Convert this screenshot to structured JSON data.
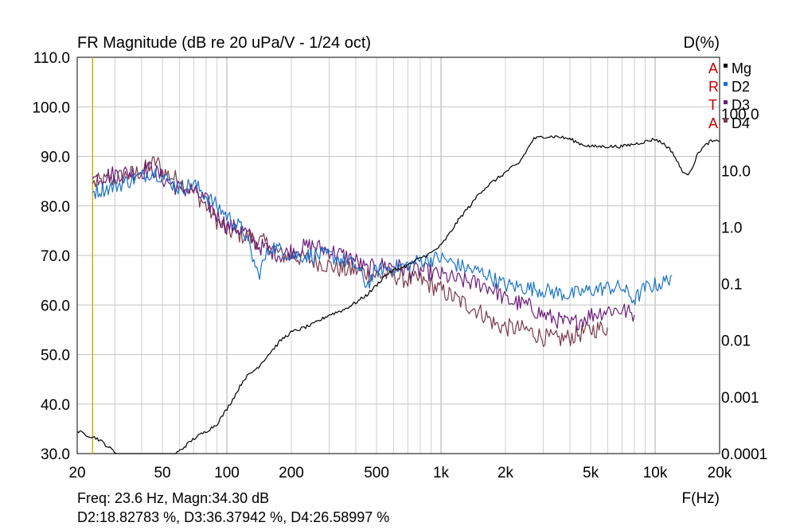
{
  "chart_data": {
    "type": "line",
    "title": "FR Magnitude (dB re 20 uPa/V - 1/24 oct)",
    "right_axis_label": "D(%)",
    "xlabel": "F(Hz)",
    "x_scale": "log",
    "xlim": [
      20,
      20000
    ],
    "ylim": [
      30,
      110
    ],
    "y_right_scale": "log",
    "y_right_lim": [
      0.0001,
      1000
    ],
    "grid": true,
    "legend_position": "top-right",
    "x_tick_labels": [
      {
        "value": 20,
        "label": "20"
      },
      {
        "value": 50,
        "label": "50"
      },
      {
        "value": 100,
        "label": "100"
      },
      {
        "value": 200,
        "label": "200"
      },
      {
        "value": 500,
        "label": "500"
      },
      {
        "value": 1000,
        "label": "1k"
      },
      {
        "value": 2000,
        "label": "2k"
      },
      {
        "value": 5000,
        "label": "5k"
      },
      {
        "value": 10000,
        "label": "10k"
      },
      {
        "value": 20000,
        "label": "20k"
      }
    ],
    "y_left_tick_labels": [
      {
        "value": 110,
        "label": "110.0"
      },
      {
        "value": 100,
        "label": "100.0"
      },
      {
        "value": 90,
        "label": "90.0"
      },
      {
        "value": 80,
        "label": "80.0"
      },
      {
        "value": 70,
        "label": "70.0"
      },
      {
        "value": 60,
        "label": "60.0"
      },
      {
        "value": 50,
        "label": "50.0"
      },
      {
        "value": 40,
        "label": "40.0"
      },
      {
        "value": 30,
        "label": "30.0"
      }
    ],
    "y_right_tick_labels": [
      {
        "value": 100,
        "label": "100.0"
      },
      {
        "value": 10,
        "label": "10.0"
      },
      {
        "value": 1,
        "label": "1.0"
      },
      {
        "value": 0.1,
        "label": "0.1"
      },
      {
        "value": 0.01,
        "label": "0.01"
      },
      {
        "value": 0.001,
        "label": "0.001"
      },
      {
        "value": 0.0001,
        "label": "0.0001"
      }
    ],
    "cursor_freq_hz": 23.6,
    "series": [
      {
        "name": "Mg",
        "axis": "left",
        "color": "#000000",
        "points": [
          [
            20,
            34.5
          ],
          [
            25,
            33
          ],
          [
            30,
            30.3
          ],
          [
            40,
            27
          ],
          [
            50,
            28
          ],
          [
            60,
            30.5
          ],
          [
            70,
            33
          ],
          [
            80,
            34.5
          ],
          [
            90,
            36
          ],
          [
            100,
            39
          ],
          [
            110,
            42
          ],
          [
            120,
            45
          ],
          [
            140,
            47.5
          ],
          [
            160,
            50.5
          ],
          [
            180,
            53
          ],
          [
            200,
            54.5
          ],
          [
            250,
            56
          ],
          [
            300,
            58
          ],
          [
            350,
            59
          ],
          [
            400,
            60.5
          ],
          [
            450,
            62
          ],
          [
            500,
            64
          ],
          [
            550,
            66
          ],
          [
            600,
            67
          ],
          [
            700,
            68
          ],
          [
            800,
            69.5
          ],
          [
            900,
            70.5
          ],
          [
            1000,
            72
          ],
          [
            1100,
            74.5
          ],
          [
            1200,
            77
          ],
          [
            1300,
            79
          ],
          [
            1400,
            80.5
          ],
          [
            1500,
            82.5
          ],
          [
            1700,
            84.5
          ],
          [
            1900,
            86
          ],
          [
            2100,
            87.5
          ],
          [
            2300,
            88.5
          ],
          [
            2500,
            91
          ],
          [
            2700,
            93.5
          ],
          [
            3000,
            94
          ],
          [
            3500,
            94
          ],
          [
            4000,
            93.5
          ],
          [
            4500,
            92.5
          ],
          [
            5000,
            92
          ],
          [
            6000,
            92
          ],
          [
            7000,
            92
          ],
          [
            8000,
            92.5
          ],
          [
            9000,
            93
          ],
          [
            10000,
            93.5
          ],
          [
            11000,
            92.5
          ],
          [
            12000,
            91
          ],
          [
            13000,
            88
          ],
          [
            14000,
            86
          ],
          [
            15000,
            88
          ],
          [
            16000,
            91
          ],
          [
            18000,
            93
          ],
          [
            20000,
            93
          ]
        ]
      },
      {
        "name": "D2",
        "axis": "left",
        "color": "#1a73c7",
        "points": [
          [
            23.6,
            82.8
          ],
          [
            30,
            84
          ],
          [
            40,
            86
          ],
          [
            45,
            87
          ],
          [
            50,
            86
          ],
          [
            60,
            83.5
          ],
          [
            70,
            84.5
          ],
          [
            80,
            82
          ],
          [
            90,
            80
          ],
          [
            100,
            78
          ],
          [
            120,
            75
          ],
          [
            140,
            66
          ],
          [
            160,
            72
          ],
          [
            180,
            71
          ],
          [
            200,
            70
          ],
          [
            250,
            70
          ],
          [
            300,
            70
          ],
          [
            350,
            69
          ],
          [
            400,
            68
          ],
          [
            450,
            64
          ],
          [
            500,
            67
          ],
          [
            600,
            67.5
          ],
          [
            700,
            68
          ],
          [
            800,
            69
          ],
          [
            1000,
            69.5
          ],
          [
            1200,
            68
          ],
          [
            1400,
            67
          ],
          [
            1600,
            66.5
          ],
          [
            1800,
            65
          ],
          [
            2000,
            64
          ],
          [
            2500,
            63.5
          ],
          [
            3000,
            63
          ],
          [
            3500,
            62.5
          ],
          [
            4000,
            62
          ],
          [
            5000,
            63
          ],
          [
            6000,
            63.5
          ],
          [
            7000,
            63.5
          ],
          [
            8000,
            61
          ],
          [
            9000,
            63.5
          ],
          [
            10000,
            64
          ],
          [
            11000,
            64.5
          ],
          [
            12000,
            66
          ]
        ]
      },
      {
        "name": "D3",
        "axis": "left",
        "color": "#6b1d7a",
        "points": [
          [
            23.6,
            85.5
          ],
          [
            30,
            86.5
          ],
          [
            40,
            87
          ],
          [
            45,
            87.5
          ],
          [
            50,
            85.5
          ],
          [
            60,
            83.5
          ],
          [
            70,
            83
          ],
          [
            80,
            81
          ],
          [
            90,
            78
          ],
          [
            100,
            76
          ],
          [
            120,
            75
          ],
          [
            140,
            72
          ],
          [
            160,
            71
          ],
          [
            180,
            70
          ],
          [
            200,
            71
          ],
          [
            250,
            72
          ],
          [
            300,
            71
          ],
          [
            350,
            70
          ],
          [
            400,
            69
          ],
          [
            450,
            67
          ],
          [
            500,
            68
          ],
          [
            600,
            68
          ],
          [
            700,
            67
          ],
          [
            800,
            67
          ],
          [
            1000,
            66
          ],
          [
            1200,
            65
          ],
          [
            1400,
            64.5
          ],
          [
            1600,
            64
          ],
          [
            1800,
            63
          ],
          [
            2000,
            61
          ],
          [
            2500,
            60
          ],
          [
            3000,
            58
          ],
          [
            3500,
            57
          ],
          [
            4000,
            56
          ],
          [
            5000,
            58
          ],
          [
            6000,
            59
          ],
          [
            7000,
            59
          ],
          [
            8000,
            58
          ]
        ]
      },
      {
        "name": "D4",
        "axis": "left",
        "color": "#7a3b4a",
        "points": [
          [
            23.6,
            84.5
          ],
          [
            30,
            85.5
          ],
          [
            40,
            87
          ],
          [
            47,
            89
          ],
          [
            50,
            87
          ],
          [
            60,
            85
          ],
          [
            70,
            83
          ],
          [
            80,
            80
          ],
          [
            90,
            77
          ],
          [
            100,
            75
          ],
          [
            120,
            74
          ],
          [
            140,
            73
          ],
          [
            160,
            72
          ],
          [
            180,
            70
          ],
          [
            200,
            70
          ],
          [
            250,
            69
          ],
          [
            300,
            68
          ],
          [
            350,
            67
          ],
          [
            400,
            67
          ],
          [
            500,
            66
          ],
          [
            600,
            66
          ],
          [
            700,
            65
          ],
          [
            800,
            65
          ],
          [
            1000,
            63
          ],
          [
            1200,
            61
          ],
          [
            1400,
            59.5
          ],
          [
            1600,
            58
          ],
          [
            1800,
            56
          ],
          [
            2000,
            55.5
          ],
          [
            2500,
            55
          ],
          [
            3000,
            53.5
          ],
          [
            3500,
            53
          ],
          [
            4000,
            53.5
          ],
          [
            5000,
            55
          ],
          [
            6000,
            55.5
          ]
        ]
      }
    ]
  },
  "legend": {
    "watermark_letters": [
      "A",
      "R",
      "T",
      "A"
    ],
    "entries": [
      {
        "name": "Mg",
        "color": "#000000"
      },
      {
        "name": "D2",
        "color": "#1a73c7"
      },
      {
        "name": "D3",
        "color": "#6b1d7a"
      },
      {
        "name": "D4",
        "color": "#7a3b4a"
      }
    ]
  },
  "readout": {
    "line1": "Freq: 23.6 Hz, Magn:34.30 dB",
    "line2": "D2:18.82783 %, D3:36.37942 %, D4:26.58997 %"
  },
  "colors": {
    "grid": "#c4c4c4",
    "cursor": "#d4b000",
    "watermark": "#c00000"
  }
}
